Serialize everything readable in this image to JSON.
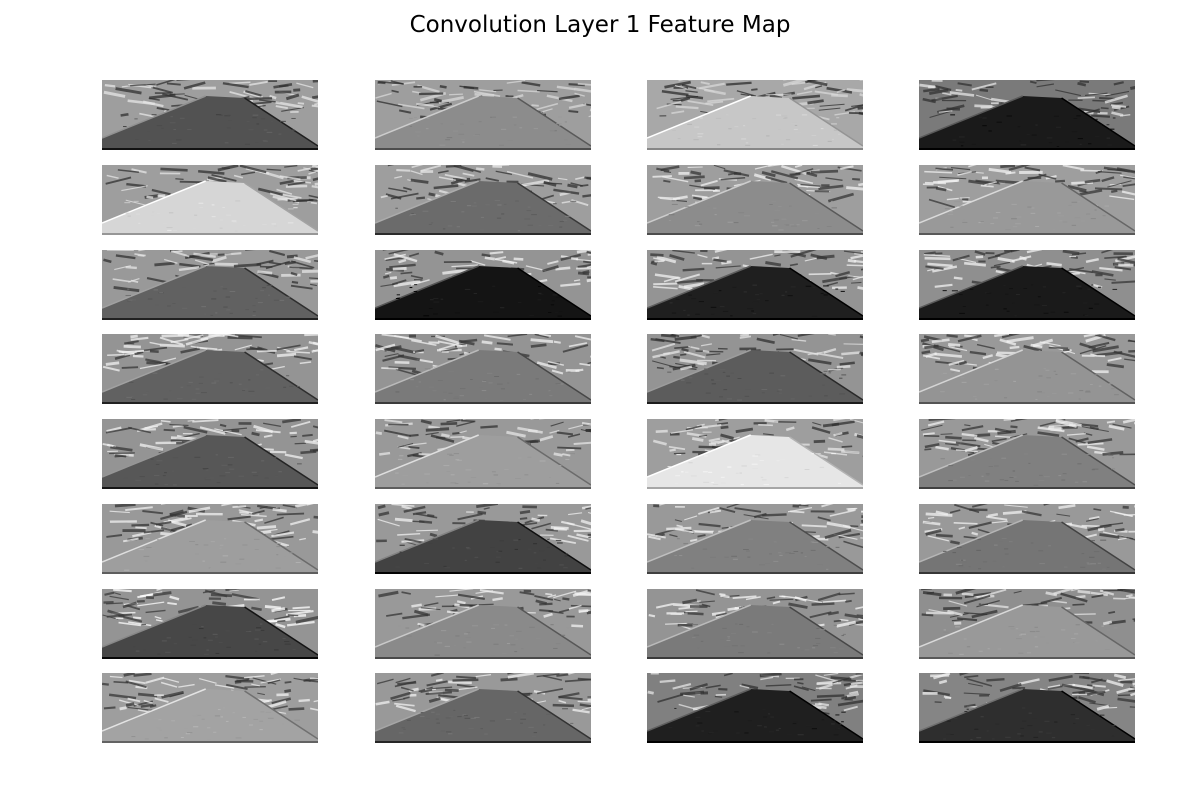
{
  "title": "Convolution Layer 1 Feature Map",
  "chart_data": {
    "type": "heatmap",
    "title": "Convolution Layer 1 Feature Map",
    "rows": 8,
    "cols": 4,
    "colormap": "gray",
    "axes_visible": false,
    "maps": [
      {
        "road": 0.32,
        "sky": 0.62,
        "texture": 0.55
      },
      {
        "road": 0.55,
        "sky": 0.62,
        "texture": 0.5
      },
      {
        "road": 0.78,
        "sky": 0.66,
        "texture": 0.5
      },
      {
        "road": 0.1,
        "sky": 0.48,
        "texture": 0.55
      },
      {
        "road": 0.84,
        "sky": 0.62,
        "texture": 0.55
      },
      {
        "road": 0.42,
        "sky": 0.62,
        "texture": 0.55
      },
      {
        "road": 0.55,
        "sky": 0.62,
        "texture": 0.6
      },
      {
        "road": 0.6,
        "sky": 0.62,
        "texture": 0.6
      },
      {
        "road": 0.38,
        "sky": 0.6,
        "texture": 0.55
      },
      {
        "road": 0.08,
        "sky": 0.58,
        "texture": 0.6
      },
      {
        "road": 0.12,
        "sky": 0.58,
        "texture": 0.6
      },
      {
        "road": 0.1,
        "sky": 0.56,
        "texture": 0.6
      },
      {
        "road": 0.38,
        "sky": 0.58,
        "texture": 0.6
      },
      {
        "road": 0.48,
        "sky": 0.58,
        "texture": 0.6
      },
      {
        "road": 0.36,
        "sky": 0.58,
        "texture": 0.55
      },
      {
        "road": 0.58,
        "sky": 0.6,
        "texture": 0.6
      },
      {
        "road": 0.34,
        "sky": 0.58,
        "texture": 0.6
      },
      {
        "road": 0.62,
        "sky": 0.6,
        "texture": 0.55
      },
      {
        "road": 0.9,
        "sky": 0.62,
        "texture": 0.55
      },
      {
        "road": 0.5,
        "sky": 0.6,
        "texture": 0.6
      },
      {
        "road": 0.62,
        "sky": 0.6,
        "texture": 0.6
      },
      {
        "road": 0.26,
        "sky": 0.6,
        "texture": 0.6
      },
      {
        "road": 0.5,
        "sky": 0.6,
        "texture": 0.6
      },
      {
        "road": 0.46,
        "sky": 0.6,
        "texture": 0.6
      },
      {
        "road": 0.28,
        "sky": 0.58,
        "texture": 0.65
      },
      {
        "road": 0.54,
        "sky": 0.6,
        "texture": 0.6
      },
      {
        "road": 0.48,
        "sky": 0.58,
        "texture": 0.62
      },
      {
        "road": 0.6,
        "sky": 0.56,
        "texture": 0.55
      },
      {
        "road": 0.64,
        "sky": 0.62,
        "texture": 0.6
      },
      {
        "road": 0.4,
        "sky": 0.6,
        "texture": 0.6
      },
      {
        "road": 0.12,
        "sky": 0.5,
        "texture": 0.55
      },
      {
        "road": 0.18,
        "sky": 0.52,
        "texture": 0.6
      }
    ]
  }
}
